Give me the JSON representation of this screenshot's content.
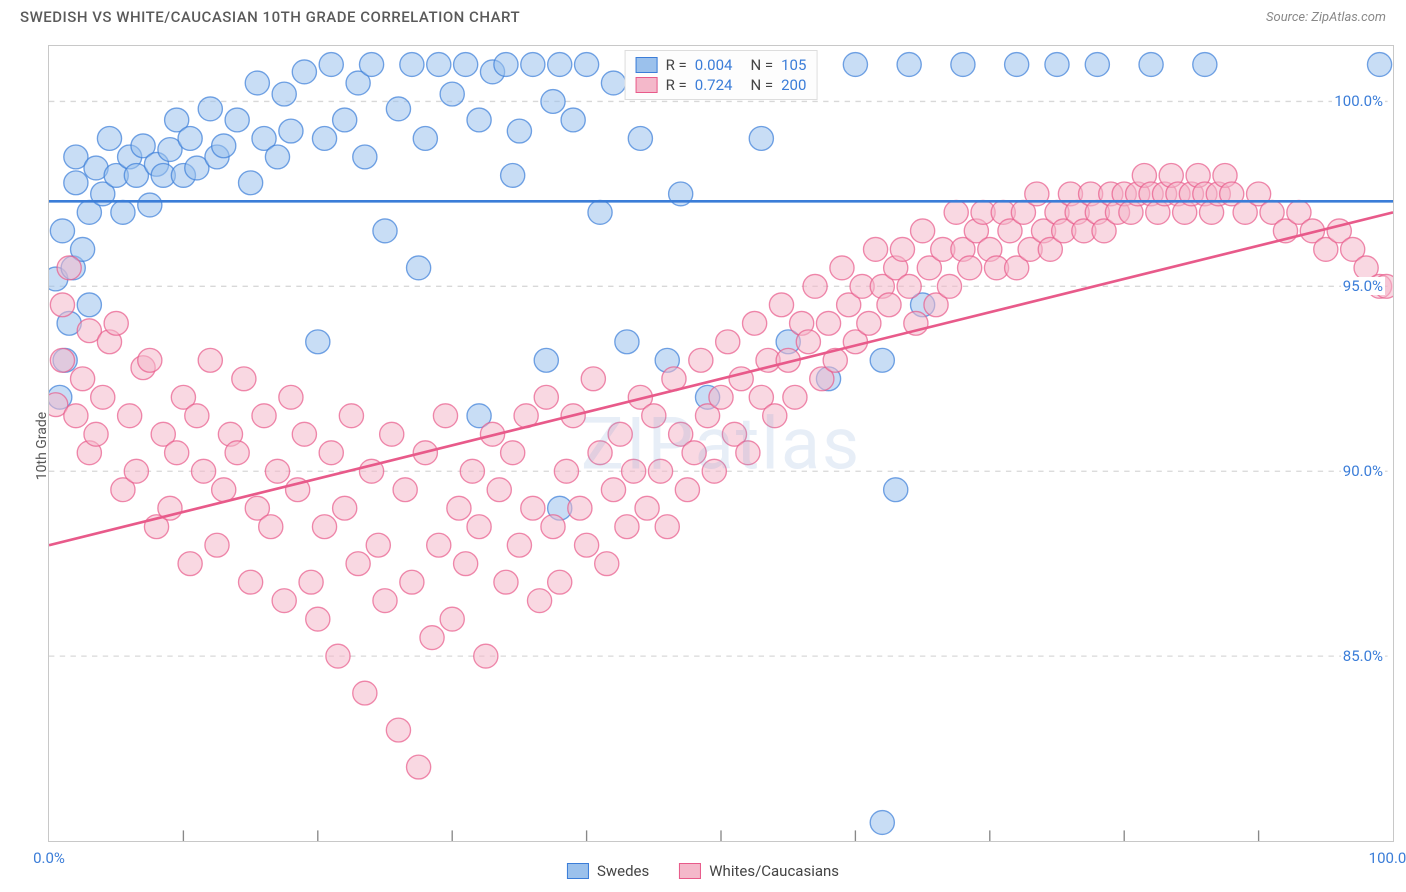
{
  "title": "SWEDISH VS WHITE/CAUCASIAN 10TH GRADE CORRELATION CHART",
  "source": "Source: ZipAtlas.com",
  "y_axis_label": "10th Grade",
  "watermark": "ZIPatlas",
  "chart": {
    "type": "scatter",
    "background_color": "#ffffff",
    "grid_color": "#d8d8d8",
    "border_color": "#c8c8c8",
    "xlim": [
      0,
      100
    ],
    "ylim": [
      80,
      101.5
    ],
    "x_ticks": [
      0,
      100
    ],
    "x_tick_labels": [
      "0.0%",
      "100.0%"
    ],
    "x_minor_ticks": [
      10,
      20,
      30,
      40,
      50,
      60,
      70,
      80,
      90
    ],
    "y_ticks": [
      85,
      90,
      95,
      100
    ],
    "y_tick_labels": [
      "85.0%",
      "90.0%",
      "95.0%",
      "100.0%"
    ],
    "tick_label_color": "#3b7dd8",
    "tick_label_fontsize": 15,
    "marker_radius": 9,
    "marker_opacity": 0.55,
    "line_width": 2,
    "series": [
      {
        "name": "Swedes",
        "color_fill": "#9bc1ec",
        "color_stroke": "#3b7dd8",
        "r_value": "0.004",
        "n_value": "105",
        "trend": {
          "y_start": 97.3,
          "y_end": 97.3
        },
        "points": [
          [
            0.5,
            95.2
          ],
          [
            0.8,
            92.0
          ],
          [
            1,
            96.5
          ],
          [
            1.2,
            93.0
          ],
          [
            1.5,
            94.0
          ],
          [
            1.8,
            95.5
          ],
          [
            2,
            97.8
          ],
          [
            2,
            98.5
          ],
          [
            2.5,
            96.0
          ],
          [
            3,
            97.0
          ],
          [
            3,
            94.5
          ],
          [
            3.5,
            98.2
          ],
          [
            4,
            97.5
          ],
          [
            4.5,
            99.0
          ],
          [
            5,
            98.0
          ],
          [
            5.5,
            97.0
          ],
          [
            6,
            98.5
          ],
          [
            6.5,
            98.0
          ],
          [
            7,
            98.8
          ],
          [
            7.5,
            97.2
          ],
          [
            8,
            98.3
          ],
          [
            8.5,
            98.0
          ],
          [
            9,
            98.7
          ],
          [
            9.5,
            99.5
          ],
          [
            10,
            98.0
          ],
          [
            10.5,
            99.0
          ],
          [
            11,
            98.2
          ],
          [
            12,
            99.8
          ],
          [
            12.5,
            98.5
          ],
          [
            13,
            98.8
          ],
          [
            14,
            99.5
          ],
          [
            15,
            97.8
          ],
          [
            15.5,
            100.5
          ],
          [
            16,
            99.0
          ],
          [
            17,
            98.5
          ],
          [
            17.5,
            100.2
          ],
          [
            18,
            99.2
          ],
          [
            19,
            100.8
          ],
          [
            20,
            93.5
          ],
          [
            20.5,
            99.0
          ],
          [
            21,
            101.0
          ],
          [
            22,
            99.5
          ],
          [
            23,
            100.5
          ],
          [
            23.5,
            98.5
          ],
          [
            24,
            101.0
          ],
          [
            25,
            96.5
          ],
          [
            26,
            99.8
          ],
          [
            27,
            101.0
          ],
          [
            27.5,
            95.5
          ],
          [
            28,
            99.0
          ],
          [
            29,
            101.0
          ],
          [
            30,
            100.2
          ],
          [
            31,
            101.0
          ],
          [
            32,
            99.5
          ],
          [
            32,
            91.5
          ],
          [
            33,
            100.8
          ],
          [
            34,
            101.0
          ],
          [
            34.5,
            98.0
          ],
          [
            35,
            99.2
          ],
          [
            36,
            101.0
          ],
          [
            37,
            93.0
          ],
          [
            37.5,
            100.0
          ],
          [
            38,
            101.0
          ],
          [
            38,
            89.0
          ],
          [
            39,
            99.5
          ],
          [
            40,
            101.0
          ],
          [
            41,
            97.0
          ],
          [
            42,
            100.5
          ],
          [
            43,
            93.5
          ],
          [
            44,
            99.0
          ],
          [
            45,
            101.0
          ],
          [
            46,
            93.0
          ],
          [
            47,
            97.5
          ],
          [
            48,
            101.0
          ],
          [
            49,
            92.0
          ],
          [
            51,
            101.0
          ],
          [
            53,
            99.0
          ],
          [
            55,
            93.5
          ],
          [
            56,
            101.0
          ],
          [
            58,
            92.5
          ],
          [
            60,
            101.0
          ],
          [
            62,
            93.0
          ],
          [
            63,
            89.5
          ],
          [
            64,
            101.0
          ],
          [
            68,
            101.0
          ],
          [
            72,
            101.0
          ],
          [
            75,
            101.0
          ],
          [
            78,
            101.0
          ],
          [
            82,
            101.0
          ],
          [
            86,
            101.0
          ],
          [
            62,
            80.5
          ],
          [
            65,
            94.5
          ],
          [
            99,
            101.0
          ]
        ]
      },
      {
        "name": "Whites/Caucasians",
        "color_fill": "#f4b8ca",
        "color_stroke": "#e85a8a",
        "r_value": "0.724",
        "n_value": "200",
        "trend": {
          "y_start": 88.0,
          "y_end": 97.0
        },
        "points": [
          [
            0.5,
            91.8
          ],
          [
            1,
            94.5
          ],
          [
            1,
            93.0
          ],
          [
            1.5,
            95.5
          ],
          [
            2,
            91.5
          ],
          [
            2.5,
            92.5
          ],
          [
            3,
            93.8
          ],
          [
            3,
            90.5
          ],
          [
            3.5,
            91.0
          ],
          [
            4,
            92.0
          ],
          [
            4.5,
            93.5
          ],
          [
            5,
            94.0
          ],
          [
            5.5,
            89.5
          ],
          [
            6,
            91.5
          ],
          [
            6.5,
            90.0
          ],
          [
            7,
            92.8
          ],
          [
            7.5,
            93.0
          ],
          [
            8,
            88.5
          ],
          [
            8.5,
            91.0
          ],
          [
            9,
            89.0
          ],
          [
            9.5,
            90.5
          ],
          [
            10,
            92.0
          ],
          [
            10.5,
            87.5
          ],
          [
            11,
            91.5
          ],
          [
            11.5,
            90.0
          ],
          [
            12,
            93.0
          ],
          [
            12.5,
            88.0
          ],
          [
            13,
            89.5
          ],
          [
            13.5,
            91.0
          ],
          [
            14,
            90.5
          ],
          [
            14.5,
            92.5
          ],
          [
            15,
            87.0
          ],
          [
            15.5,
            89.0
          ],
          [
            16,
            91.5
          ],
          [
            16.5,
            88.5
          ],
          [
            17,
            90.0
          ],
          [
            17.5,
            86.5
          ],
          [
            18,
            92.0
          ],
          [
            18.5,
            89.5
          ],
          [
            19,
            91.0
          ],
          [
            19.5,
            87.0
          ],
          [
            20,
            86.0
          ],
          [
            20.5,
            88.5
          ],
          [
            21,
            90.5
          ],
          [
            21.5,
            85.0
          ],
          [
            22,
            89.0
          ],
          [
            22.5,
            91.5
          ],
          [
            23,
            87.5
          ],
          [
            23.5,
            84.0
          ],
          [
            24,
            90.0
          ],
          [
            24.5,
            88.0
          ],
          [
            25,
            86.5
          ],
          [
            25.5,
            91.0
          ],
          [
            26,
            83.0
          ],
          [
            26.5,
            89.5
          ],
          [
            27,
            87.0
          ],
          [
            27.5,
            82.0
          ],
          [
            28,
            90.5
          ],
          [
            28.5,
            85.5
          ],
          [
            29,
            88.0
          ],
          [
            29.5,
            91.5
          ],
          [
            30,
            86.0
          ],
          [
            30.5,
            89.0
          ],
          [
            31,
            87.5
          ],
          [
            31.5,
            90.0
          ],
          [
            32,
            88.5
          ],
          [
            32.5,
            85.0
          ],
          [
            33,
            91.0
          ],
          [
            33.5,
            89.5
          ],
          [
            34,
            87.0
          ],
          [
            34.5,
            90.5
          ],
          [
            35,
            88.0
          ],
          [
            35.5,
            91.5
          ],
          [
            36,
            89.0
          ],
          [
            36.5,
            86.5
          ],
          [
            37,
            92.0
          ],
          [
            37.5,
            88.5
          ],
          [
            38,
            87.0
          ],
          [
            38.5,
            90.0
          ],
          [
            39,
            91.5
          ],
          [
            39.5,
            89.0
          ],
          [
            40,
            88.0
          ],
          [
            40.5,
            92.5
          ],
          [
            41,
            90.5
          ],
          [
            41.5,
            87.5
          ],
          [
            42,
            89.5
          ],
          [
            42.5,
            91.0
          ],
          [
            43,
            88.5
          ],
          [
            43.5,
            90.0
          ],
          [
            44,
            92.0
          ],
          [
            44.5,
            89.0
          ],
          [
            45,
            91.5
          ],
          [
            45.5,
            90.0
          ],
          [
            46,
            88.5
          ],
          [
            46.5,
            92.5
          ],
          [
            47,
            91.0
          ],
          [
            47.5,
            89.5
          ],
          [
            48,
            90.5
          ],
          [
            48.5,
            93.0
          ],
          [
            49,
            91.5
          ],
          [
            49.5,
            90.0
          ],
          [
            50,
            92.0
          ],
          [
            50.5,
            93.5
          ],
          [
            51,
            91.0
          ],
          [
            51.5,
            92.5
          ],
          [
            52,
            90.5
          ],
          [
            52.5,
            94.0
          ],
          [
            53,
            92.0
          ],
          [
            53.5,
            93.0
          ],
          [
            54,
            91.5
          ],
          [
            54.5,
            94.5
          ],
          [
            55,
            93.0
          ],
          [
            55.5,
            92.0
          ],
          [
            56,
            94.0
          ],
          [
            56.5,
            93.5
          ],
          [
            57,
            95.0
          ],
          [
            57.5,
            92.5
          ],
          [
            58,
            94.0
          ],
          [
            58.5,
            93.0
          ],
          [
            59,
            95.5
          ],
          [
            59.5,
            94.5
          ],
          [
            60,
            93.5
          ],
          [
            60.5,
            95.0
          ],
          [
            61,
            94.0
          ],
          [
            61.5,
            96.0
          ],
          [
            62,
            95.0
          ],
          [
            62.5,
            94.5
          ],
          [
            63,
            95.5
          ],
          [
            63.5,
            96.0
          ],
          [
            64,
            95.0
          ],
          [
            64.5,
            94.0
          ],
          [
            65,
            96.5
          ],
          [
            65.5,
            95.5
          ],
          [
            66,
            94.5
          ],
          [
            66.5,
            96.0
          ],
          [
            67,
            95.0
          ],
          [
            67.5,
            97.0
          ],
          [
            68,
            96.0
          ],
          [
            68.5,
            95.5
          ],
          [
            69,
            96.5
          ],
          [
            69.5,
            97.0
          ],
          [
            70,
            96.0
          ],
          [
            70.5,
            95.5
          ],
          [
            71,
            97.0
          ],
          [
            71.5,
            96.5
          ],
          [
            72,
            95.5
          ],
          [
            72.5,
            97.0
          ],
          [
            73,
            96.0
          ],
          [
            73.5,
            97.5
          ],
          [
            74,
            96.5
          ],
          [
            74.5,
            96.0
          ],
          [
            75,
            97.0
          ],
          [
            75.5,
            96.5
          ],
          [
            76,
            97.5
          ],
          [
            76.5,
            97.0
          ],
          [
            77,
            96.5
          ],
          [
            77.5,
            97.5
          ],
          [
            78,
            97.0
          ],
          [
            78.5,
            96.5
          ],
          [
            79,
            97.5
          ],
          [
            79.5,
            97.0
          ],
          [
            80,
            97.5
          ],
          [
            80.5,
            97.0
          ],
          [
            81,
            97.5
          ],
          [
            81.5,
            98.0
          ],
          [
            82,
            97.5
          ],
          [
            82.5,
            97.0
          ],
          [
            83,
            97.5
          ],
          [
            83.5,
            98.0
          ],
          [
            84,
            97.5
          ],
          [
            84.5,
            97.0
          ],
          [
            85,
            97.5
          ],
          [
            85.5,
            98.0
          ],
          [
            86,
            97.5
          ],
          [
            86.5,
            97.0
          ],
          [
            87,
            97.5
          ],
          [
            87.5,
            98.0
          ],
          [
            88,
            97.5
          ],
          [
            89,
            97.0
          ],
          [
            90,
            97.5
          ],
          [
            91,
            97.0
          ],
          [
            92,
            96.5
          ],
          [
            93,
            97.0
          ],
          [
            94,
            96.5
          ],
          [
            95,
            96.0
          ],
          [
            96,
            96.5
          ],
          [
            97,
            96.0
          ],
          [
            98,
            95.5
          ],
          [
            99,
            95.0
          ],
          [
            99.5,
            95.0
          ]
        ]
      }
    ]
  },
  "legend_top": {
    "r_label": "R =",
    "n_label": "N ="
  },
  "legend_bottom": [
    {
      "label": "Swedes",
      "fill": "#9bc1ec",
      "stroke": "#3b7dd8"
    },
    {
      "label": "Whites/Caucasians",
      "fill": "#f4b8ca",
      "stroke": "#e85a8a"
    }
  ]
}
